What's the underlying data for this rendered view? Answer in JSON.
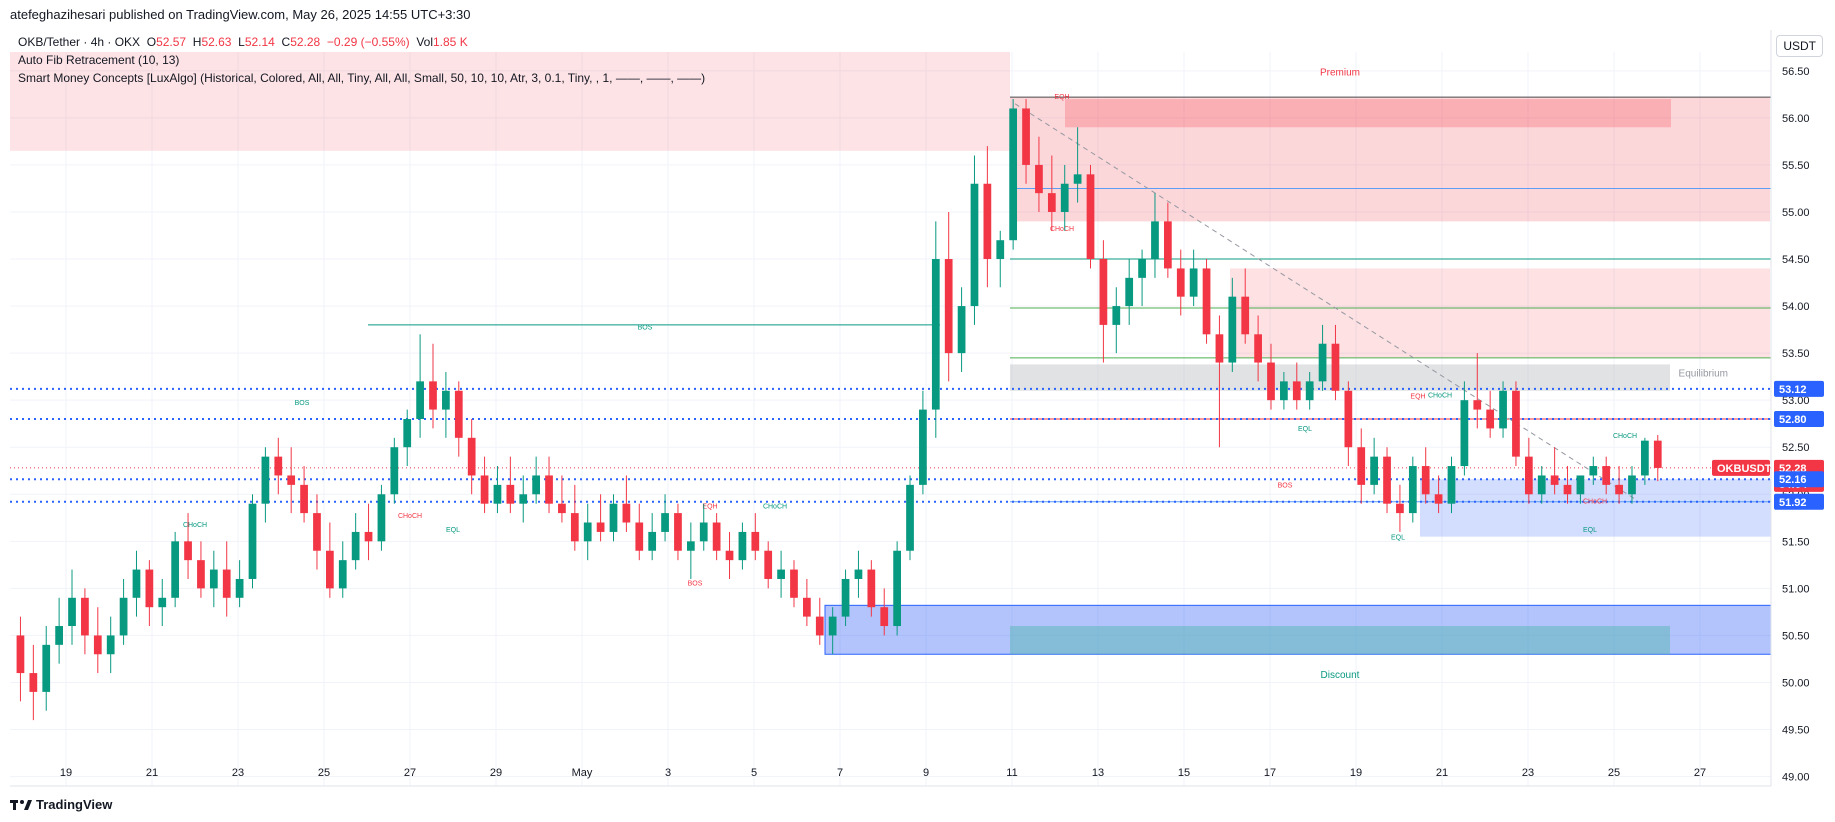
{
  "header": {
    "publisher_line": "atefeghazihesari published on TradingView.com, May 26, 2025 14:55 UTC+3:30"
  },
  "legend": {
    "symbol": "OKB/Tether · 4h · OKX",
    "o_label": "O",
    "o_value": "52.57",
    "h_label": "H",
    "h_value": "52.63",
    "l_label": "L",
    "l_value": "52.14",
    "c_label": "C",
    "c_value": "52.28",
    "change": "−0.29 (−0.55%)",
    "vol_label": "Vol",
    "vol_value": "1.85 K",
    "indicator_1": "Auto Fib Retracement (10, 13)",
    "indicator_2": "Smart Money Concepts [LuxAlgo] (Historical, Colored, All, All, Tiny, All, All, Small, 50, 10, 10, Atr, 3, 0.1, Tiny, , 1, ——, ——, ——)"
  },
  "price_unit": "USDT",
  "footer": {
    "brand": "TradingView"
  },
  "colors": {
    "up": "#089981",
    "down": "#f23645",
    "blue": "#2962ff",
    "premium_fill": "#f23645",
    "discount_fill": "#2157f3",
    "equilibrium_fill": "#878b94"
  },
  "chart_data": {
    "type": "candlestick",
    "symbol": "OKBUSDT",
    "timeframe": "4h",
    "ylim": [
      48.9,
      56.7
    ],
    "y_ticks": [
      "49.00",
      "49.50",
      "50.00",
      "50.50",
      "51.00",
      "51.50",
      "52.00",
      "52.50",
      "53.00",
      "53.50",
      "54.00",
      "54.50",
      "55.00",
      "55.50",
      "56.00",
      "56.50"
    ],
    "x_ticks": [
      "19",
      "21",
      "23",
      "25",
      "27",
      "29",
      "May",
      "3",
      "5",
      "7",
      "9",
      "11",
      "13",
      "15",
      "17",
      "19",
      "21",
      "23",
      "25",
      "27"
    ],
    "price_tags": [
      {
        "value": "53.12",
        "color": "#2962ff"
      },
      {
        "value": "52.80",
        "color": "#2962ff"
      },
      {
        "value": "OKBUSDT",
        "color": "#f23645"
      },
      {
        "value": "52.28",
        "color": "#f23645"
      },
      {
        "value": "34:04",
        "color": "#f23645"
      },
      {
        "value": "52.16",
        "color": "#2962ff"
      },
      {
        "value": "51.92",
        "color": "#2962ff"
      }
    ],
    "zone_labels": {
      "premium": "Premium",
      "equilibrium": "Equilibrium",
      "discount": "Discount"
    },
    "structure_labels": [
      {
        "text": "BOS",
        "color": "#089981"
      },
      {
        "text": "BOS",
        "color": "#089981"
      },
      {
        "text": "CHoCH",
        "color": "#089981"
      },
      {
        "text": "CHoCH",
        "color": "#f23645"
      },
      {
        "text": "EQL",
        "color": "#089981"
      },
      {
        "text": "EQH",
        "color": "#f23645"
      },
      {
        "text": "BOS",
        "color": "#f23645"
      },
      {
        "text": "CHoCH",
        "color": "#089981"
      },
      {
        "text": "EQH",
        "color": "#f23645"
      },
      {
        "text": "CHoCH",
        "color": "#f23645"
      },
      {
        "text": "EQL",
        "color": "#089981"
      },
      {
        "text": "BOS",
        "color": "#f23645"
      },
      {
        "text": "EQL",
        "color": "#089981"
      },
      {
        "text": "EQH",
        "color": "#f23645"
      },
      {
        "text": "CHoCH",
        "color": "#089981"
      },
      {
        "text": "CHoCH",
        "color": "#089981"
      },
      {
        "text": "CHoCH",
        "color": "#f23645"
      },
      {
        "text": "EQL",
        "color": "#089981"
      }
    ],
    "fib_levels": [
      56.22,
      55.25,
      54.5,
      53.98,
      53.45,
      52.8,
      51.92
    ],
    "premium_zone": [
      55.65,
      56.7
    ],
    "discount_zone": [
      50.3,
      50.82
    ],
    "equilibrium_zone": [
      53.1,
      53.38
    ],
    "candles": [
      [
        50.5,
        50.7,
        49.8,
        50.1
      ],
      [
        50.1,
        50.4,
        49.6,
        49.9
      ],
      [
        49.9,
        50.6,
        49.7,
        50.4
      ],
      [
        50.4,
        50.9,
        50.2,
        50.6
      ],
      [
        50.6,
        51.2,
        50.4,
        50.9
      ],
      [
        50.9,
        51.0,
        50.3,
        50.5
      ],
      [
        50.5,
        50.8,
        50.1,
        50.3
      ],
      [
        50.3,
        50.7,
        50.1,
        50.5
      ],
      [
        50.5,
        51.1,
        50.4,
        50.9
      ],
      [
        50.9,
        51.4,
        50.7,
        51.2
      ],
      [
        51.2,
        51.3,
        50.6,
        50.8
      ],
      [
        50.8,
        51.1,
        50.6,
        50.9
      ],
      [
        50.9,
        51.6,
        50.8,
        51.5
      ],
      [
        51.5,
        51.8,
        51.1,
        51.3
      ],
      [
        51.3,
        51.5,
        50.9,
        51.0
      ],
      [
        51.0,
        51.4,
        50.8,
        51.2
      ],
      [
        51.2,
        51.5,
        50.7,
        50.9
      ],
      [
        50.9,
        51.3,
        50.8,
        51.1
      ],
      [
        51.1,
        52.0,
        51.0,
        51.9
      ],
      [
        51.9,
        52.5,
        51.7,
        52.4
      ],
      [
        52.4,
        52.6,
        52.0,
        52.2
      ],
      [
        52.2,
        52.5,
        51.8,
        52.1
      ],
      [
        52.1,
        52.3,
        51.7,
        51.8
      ],
      [
        51.8,
        52.0,
        51.2,
        51.4
      ],
      [
        51.4,
        51.7,
        50.9,
        51.0
      ],
      [
        51.0,
        51.5,
        50.9,
        51.3
      ],
      [
        51.3,
        51.8,
        51.2,
        51.6
      ],
      [
        51.6,
        51.9,
        51.3,
        51.5
      ],
      [
        51.5,
        52.1,
        51.4,
        52.0
      ],
      [
        52.0,
        52.6,
        51.9,
        52.5
      ],
      [
        52.5,
        52.9,
        52.3,
        52.8
      ],
      [
        52.8,
        53.7,
        52.6,
        53.2
      ],
      [
        53.2,
        53.6,
        52.7,
        52.9
      ],
      [
        52.9,
        53.3,
        52.6,
        53.1
      ],
      [
        53.1,
        53.2,
        52.4,
        52.6
      ],
      [
        52.6,
        52.8,
        52.0,
        52.2
      ],
      [
        52.2,
        52.4,
        51.8,
        51.9
      ],
      [
        51.9,
        52.3,
        51.8,
        52.1
      ],
      [
        52.1,
        52.4,
        51.8,
        51.9
      ],
      [
        51.9,
        52.2,
        51.7,
        52.0
      ],
      [
        52.0,
        52.4,
        51.9,
        52.2
      ],
      [
        52.2,
        52.4,
        51.8,
        51.9
      ],
      [
        51.9,
        52.2,
        51.7,
        51.8
      ],
      [
        51.8,
        52.1,
        51.4,
        51.5
      ],
      [
        51.5,
        51.9,
        51.3,
        51.7
      ],
      [
        51.7,
        52.0,
        51.5,
        51.6
      ],
      [
        51.6,
        52.0,
        51.5,
        51.9
      ],
      [
        51.9,
        52.2,
        51.6,
        51.7
      ],
      [
        51.7,
        51.9,
        51.3,
        51.4
      ],
      [
        51.4,
        51.8,
        51.3,
        51.6
      ],
      [
        51.6,
        52.0,
        51.5,
        51.8
      ],
      [
        51.8,
        51.9,
        51.3,
        51.4
      ],
      [
        51.4,
        51.7,
        51.1,
        51.5
      ],
      [
        51.5,
        51.9,
        51.4,
        51.7
      ],
      [
        51.7,
        51.8,
        51.3,
        51.4
      ],
      [
        51.4,
        51.6,
        51.1,
        51.3
      ],
      [
        51.3,
        51.7,
        51.2,
        51.6
      ],
      [
        51.6,
        51.8,
        51.3,
        51.4
      ],
      [
        51.4,
        51.5,
        51.0,
        51.1
      ],
      [
        51.1,
        51.4,
        50.9,
        51.2
      ],
      [
        51.2,
        51.3,
        50.8,
        50.9
      ],
      [
        50.9,
        51.1,
        50.6,
        50.7
      ],
      [
        50.7,
        50.9,
        50.4,
        50.5
      ],
      [
        50.5,
        50.8,
        50.3,
        50.7
      ],
      [
        50.7,
        51.2,
        50.6,
        51.1
      ],
      [
        51.1,
        51.4,
        50.9,
        51.2
      ],
      [
        51.2,
        51.3,
        50.7,
        50.8
      ],
      [
        50.8,
        51.0,
        50.5,
        50.6
      ],
      [
        50.6,
        51.5,
        50.5,
        51.4
      ],
      [
        51.4,
        52.2,
        51.3,
        52.1
      ],
      [
        52.1,
        53.1,
        52.0,
        52.9
      ],
      [
        52.9,
        54.9,
        52.6,
        54.5
      ],
      [
        54.5,
        55.0,
        53.2,
        53.5
      ],
      [
        53.5,
        54.2,
        53.3,
        54.0
      ],
      [
        54.0,
        55.6,
        53.8,
        55.3
      ],
      [
        55.3,
        55.7,
        54.2,
        54.5
      ],
      [
        54.5,
        54.8,
        54.2,
        54.7
      ],
      [
        54.7,
        56.2,
        54.6,
        56.1
      ],
      [
        56.1,
        56.2,
        55.3,
        55.5
      ],
      [
        55.5,
        55.8,
        55.0,
        55.2
      ],
      [
        55.2,
        55.6,
        54.8,
        55.0
      ],
      [
        55.0,
        55.5,
        54.8,
        55.3
      ],
      [
        55.3,
        55.9,
        55.1,
        55.4
      ],
      [
        55.4,
        55.5,
        54.4,
        54.5
      ],
      [
        54.5,
        54.7,
        53.4,
        53.8
      ],
      [
        53.8,
        54.2,
        53.5,
        54.0
      ],
      [
        54.0,
        54.5,
        53.8,
        54.3
      ],
      [
        54.3,
        54.6,
        54.0,
        54.5
      ],
      [
        54.5,
        55.2,
        54.3,
        54.9
      ],
      [
        54.9,
        55.1,
        54.3,
        54.4
      ],
      [
        54.4,
        54.6,
        53.9,
        54.1
      ],
      [
        54.1,
        54.6,
        54.0,
        54.4
      ],
      [
        54.4,
        54.5,
        53.6,
        53.7
      ],
      [
        53.7,
        53.9,
        52.5,
        53.4
      ],
      [
        53.4,
        54.3,
        53.3,
        54.1
      ],
      [
        54.1,
        54.4,
        53.6,
        53.7
      ],
      [
        53.7,
        53.9,
        53.2,
        53.4
      ],
      [
        53.4,
        53.6,
        52.9,
        53.0
      ],
      [
        53.0,
        53.3,
        52.9,
        53.2
      ],
      [
        53.2,
        53.4,
        52.9,
        53.0
      ],
      [
        53.0,
        53.3,
        52.9,
        53.2
      ],
      [
        53.2,
        53.8,
        53.1,
        53.6
      ],
      [
        53.6,
        53.8,
        53.0,
        53.1
      ],
      [
        53.1,
        53.2,
        52.3,
        52.5
      ],
      [
        52.5,
        52.7,
        51.9,
        52.1
      ],
      [
        52.1,
        52.6,
        52.0,
        52.4
      ],
      [
        52.4,
        52.5,
        51.8,
        51.9
      ],
      [
        51.9,
        52.1,
        51.6,
        51.8
      ],
      [
        51.8,
        52.4,
        51.7,
        52.3
      ],
      [
        52.3,
        52.5,
        51.9,
        52.0
      ],
      [
        52.0,
        52.2,
        51.8,
        51.9
      ],
      [
        51.9,
        52.4,
        51.8,
        52.3
      ],
      [
        52.3,
        53.2,
        52.2,
        53.0
      ],
      [
        53.0,
        53.5,
        52.7,
        52.9
      ],
      [
        52.9,
        53.1,
        52.6,
        52.7
      ],
      [
        52.7,
        53.2,
        52.6,
        53.1
      ],
      [
        53.1,
        53.2,
        52.3,
        52.4
      ],
      [
        52.4,
        52.6,
        51.9,
        52.0
      ],
      [
        52.0,
        52.3,
        51.9,
        52.2
      ],
      [
        52.2,
        52.5,
        52.0,
        52.1
      ],
      [
        52.1,
        52.3,
        51.9,
        52.0
      ],
      [
        52.0,
        52.2,
        51.9,
        52.2
      ],
      [
        52.2,
        52.4,
        52.1,
        52.3
      ],
      [
        52.3,
        52.4,
        52.0,
        52.1
      ],
      [
        52.1,
        52.3,
        51.9,
        52.0
      ],
      [
        52.0,
        52.3,
        51.9,
        52.2
      ],
      [
        52.2,
        52.6,
        52.1,
        52.57
      ],
      [
        52.57,
        52.63,
        52.14,
        52.28
      ]
    ]
  }
}
